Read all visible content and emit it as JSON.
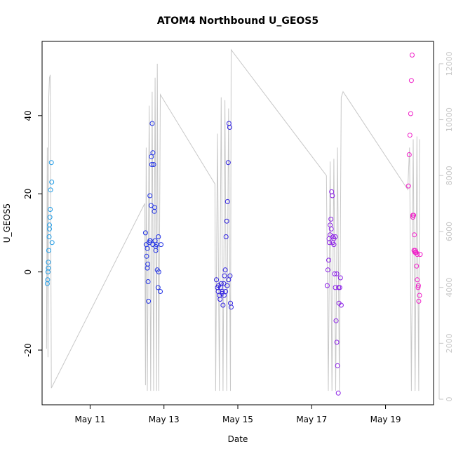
{
  "chart_data": {
    "type": "scatter",
    "title": "ATOM4 Northbound U_GEOS5",
    "xlabel": "Date",
    "ylabel": "U_GEOS5",
    "x_ticks": [
      "May 11",
      "May 13",
      "May 15",
      "May 17",
      "May 19"
    ],
    "x_tick_days": [
      11,
      13,
      15,
      17,
      19
    ],
    "xlim_days": [
      9.7,
      20.3
    ],
    "ylim": [
      -34,
      59
    ],
    "y_ticks": [
      -20,
      0,
      20,
      40
    ],
    "y2lim": [
      -200,
      12800
    ],
    "y2_ticks": [
      0,
      2000,
      4000,
      6000,
      8000,
      10000,
      12000
    ],
    "grid": false,
    "colors": {
      "altitude_line": "#c8c8c8",
      "points_start": "#1e9be6",
      "points_mid": "#2828e6",
      "points_end": "#f01ec8"
    },
    "series": [
      {
        "x_days": [
          9.84,
          9.85,
          9.86,
          9.87,
          9.87,
          9.88,
          9.89,
          9.9,
          9.9,
          9.91,
          9.92,
          9.93
        ],
        "values": [
          -3,
          -2,
          0,
          1,
          2.5,
          5.5,
          9,
          11,
          12,
          14,
          16,
          21
        ],
        "color": "#1e9be6"
      },
      {
        "x_days": [
          9.95,
          9.96,
          9.97
        ],
        "values": [
          28,
          23,
          7.5
        ],
        "color": "#1e9be6"
      },
      {
        "x_days": [
          12.5,
          12.52,
          12.53,
          12.55,
          12.56,
          12.57,
          12.58,
          12.6,
          12.62,
          12.63,
          12.65,
          12.67,
          12.68,
          12.7,
          12.72,
          12.74,
          12.75,
          12.76,
          12.78,
          12.8,
          12.82,
          12.84,
          12.85
        ],
        "values": [
          10,
          7,
          4,
          1,
          2,
          -2.5,
          -7.5,
          7.5,
          19.5,
          8,
          17,
          27.5,
          38,
          30.5,
          27.5,
          15.5,
          16.5,
          8,
          5.5,
          7,
          0.5,
          -4,
          9
        ],
        "color": "#2233e6"
      },
      {
        "x_days": [
          12.55,
          12.62,
          12.66,
          12.7,
          12.78,
          12.86,
          12.9,
          12.92
        ],
        "values": [
          6,
          8,
          29.5,
          7,
          6.5,
          0,
          -5,
          7
        ],
        "color": "#2233e6"
      },
      {
        "x_days": [
          14.42,
          14.45,
          14.47,
          14.5,
          14.52,
          14.55,
          14.57,
          14.6,
          14.62,
          14.64,
          14.66,
          14.68,
          14.7,
          14.72,
          14.74,
          14.76,
          14.78,
          14.8,
          14.82
        ],
        "values": [
          -2,
          -4,
          -5,
          -6,
          -7,
          -3,
          -5.5,
          -8.5,
          -3,
          -1,
          0.5,
          9,
          13,
          18,
          28,
          38,
          37,
          -8,
          -9
        ],
        "color": "#2d1ee0"
      },
      {
        "x_days": [
          14.48,
          14.53,
          14.58,
          14.63,
          14.67,
          14.71,
          14.75,
          14.79
        ],
        "values": [
          -3.5,
          -4,
          -5,
          -6,
          -5,
          -3.5,
          -2,
          -1
        ],
        "color": "#2d1ee0"
      },
      {
        "x_days": [
          17.42,
          17.44,
          17.46,
          17.48,
          17.5,
          17.52,
          17.54,
          17.56,
          17.58,
          17.6,
          17.62,
          17.64,
          17.66,
          17.68,
          17.7,
          17.72,
          17.74,
          17.76,
          17.78,
          17.8
        ],
        "values": [
          -3.5,
          0.5,
          3,
          7.5,
          12,
          13.5,
          20.5,
          19.5,
          9,
          7,
          -0.5,
          -4,
          -12.5,
          -18,
          -24,
          -31,
          -8,
          -4,
          -1.5,
          -8.5
        ],
        "color": "#8a1ee6"
      },
      {
        "x_days": [
          17.47,
          17.5,
          17.53,
          17.57,
          17.6,
          17.64,
          17.68,
          17.73
        ],
        "values": [
          8.5,
          9.5,
          11,
          7.5,
          8.5,
          9,
          -0.5,
          -4
        ],
        "color": "#8a1ee6"
      },
      {
        "x_days": [
          19.62,
          19.64,
          19.66,
          19.68,
          19.7,
          19.72,
          19.74,
          19.76,
          19.78,
          19.8,
          19.82,
          19.84,
          19.86,
          19.88,
          19.9
        ],
        "values": [
          22,
          30,
          35,
          40.5,
          49,
          55.5,
          14.5,
          14.5,
          9.5,
          5.5,
          5,
          1.5,
          -2,
          -4,
          -7.5
        ],
        "color": "#f01ec8"
      },
      {
        "x_days": [
          19.74,
          19.77,
          19.8,
          19.83,
          19.86,
          19.89,
          19.92,
          19.94
        ],
        "values": [
          14,
          5.5,
          5,
          5,
          4.5,
          -3.5,
          -6,
          4.5
        ],
        "color": "#f01ec8"
      }
    ],
    "altitude_line": {
      "axis": "right",
      "points": [
        [
          9.82,
          1800
        ],
        [
          9.84,
          9000
        ],
        [
          9.86,
          1500
        ],
        [
          9.88,
          10800
        ],
        [
          9.9,
          11500
        ],
        [
          9.92,
          11600
        ],
        [
          9.95,
          400
        ],
        [
          12.48,
          7000
        ],
        [
          12.5,
          500
        ],
        [
          12.52,
          9000
        ],
        [
          12.55,
          300
        ],
        [
          12.6,
          10500
        ],
        [
          12.64,
          300
        ],
        [
          12.68,
          11000
        ],
        [
          12.72,
          300
        ],
        [
          12.76,
          11500
        ],
        [
          12.8,
          300
        ],
        [
          12.82,
          12000
        ],
        [
          12.86,
          300
        ],
        [
          12.9,
          10900
        ],
        [
          14.38,
          7700
        ],
        [
          14.4,
          300
        ],
        [
          14.45,
          9500
        ],
        [
          14.5,
          300
        ],
        [
          14.55,
          10800
        ],
        [
          14.6,
          300
        ],
        [
          14.65,
          10700
        ],
        [
          14.7,
          300
        ],
        [
          14.75,
          10400
        ],
        [
          14.8,
          300
        ],
        [
          14.82,
          12500
        ],
        [
          17.4,
          8000
        ],
        [
          17.45,
          300
        ],
        [
          17.5,
          8500
        ],
        [
          17.55,
          300
        ],
        [
          17.6,
          8600
        ],
        [
          17.65,
          300
        ],
        [
          17.7,
          9000
        ],
        [
          17.75,
          300
        ],
        [
          17.8,
          10800
        ],
        [
          17.85,
          11000
        ],
        [
          19.6,
          7500
        ],
        [
          19.65,
          9000
        ],
        [
          19.7,
          300
        ],
        [
          19.75,
          9300
        ],
        [
          19.8,
          300
        ],
        [
          19.85,
          9400
        ],
        [
          19.9,
          300
        ],
        [
          19.92,
          9300
        ]
      ]
    }
  }
}
